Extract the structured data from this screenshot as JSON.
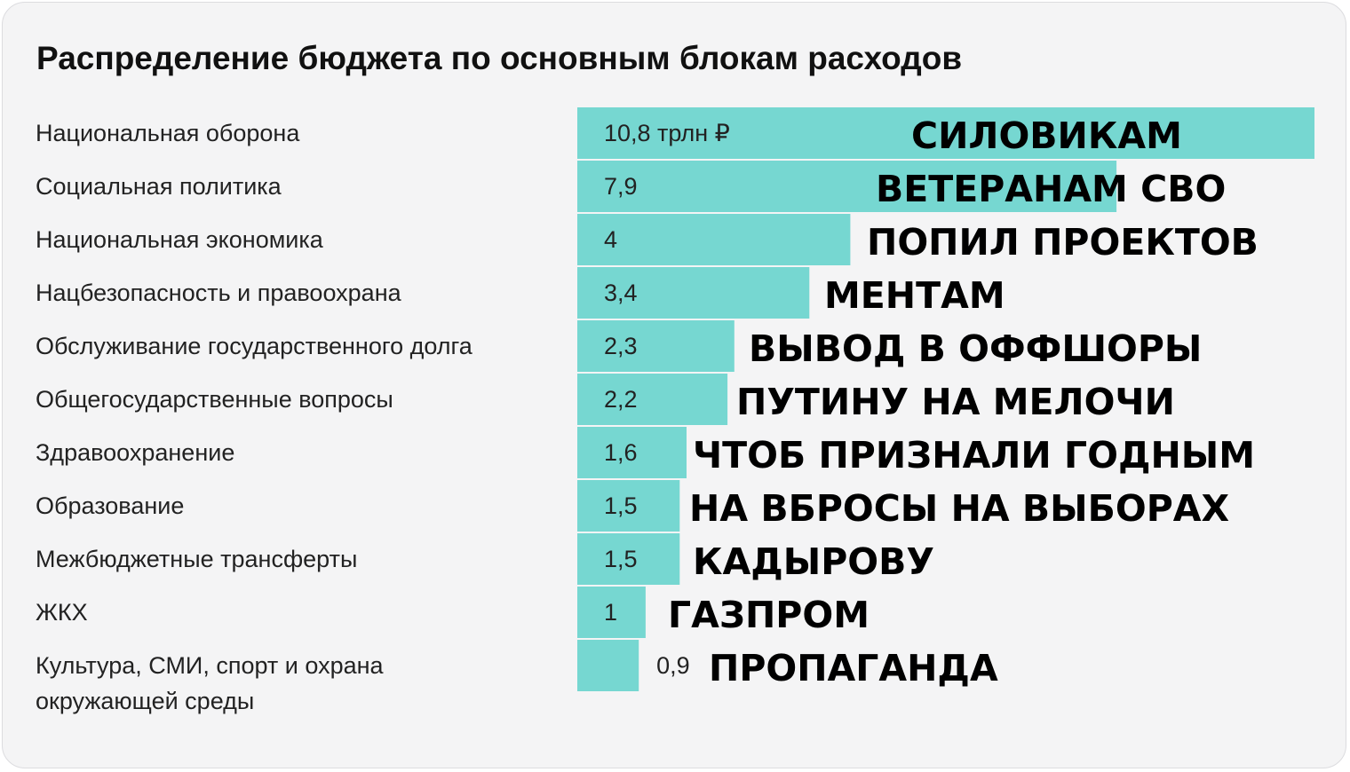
{
  "chart_data": {
    "type": "bar",
    "orientation": "horizontal",
    "title": "Распределение бюджета по основным блокам расходов",
    "categories": [
      [
        "Национальная оборона"
      ],
      [
        "Социальная политика"
      ],
      [
        "Национальная экономика"
      ],
      [
        "Нацбезопасность и правоохрана"
      ],
      [
        "Обслуживание государственного долга"
      ],
      [
        "Общегосударственные вопросы"
      ],
      [
        "Здравоохранение"
      ],
      [
        "Образование"
      ],
      [
        "Межбюджетные трансферты"
      ],
      [
        "ЖКХ"
      ],
      [
        "Культура, СМИ, спорт и охрана",
        "окружающей среды"
      ]
    ],
    "values": [
      10.8,
      7.9,
      4,
      3.4,
      2.3,
      2.2,
      1.6,
      1.5,
      1.5,
      1,
      0.9
    ],
    "value_labels": [
      "10,8 трлн ₽",
      "7,9",
      "4",
      "3,4",
      "2,3",
      "2,2",
      "1,6",
      "1,5",
      "1,5",
      "1",
      "0,9"
    ],
    "annotations": [
      "СИЛОВИКАМ",
      "ВЕТЕРАНАМ  СВО",
      "ПОПИЛ ПРОЕКТОВ",
      "МЕНТАМ",
      "ВЫВОД В ОФФШОРЫ",
      "ПУТИНУ НА МЕЛОЧИ",
      "ЧТОБ ПРИЗНАЛИ ГОДНЫМ",
      "НА ВБРОСЫ НА ВЫБОРАХ",
      "КАДЫРОВУ",
      "ГАЗПРОМ",
      "ПРОПАГАНДА"
    ],
    "xlim": [
      0,
      10.8
    ],
    "grid": false,
    "legend": "none",
    "bar_color": "#76d7d1"
  }
}
